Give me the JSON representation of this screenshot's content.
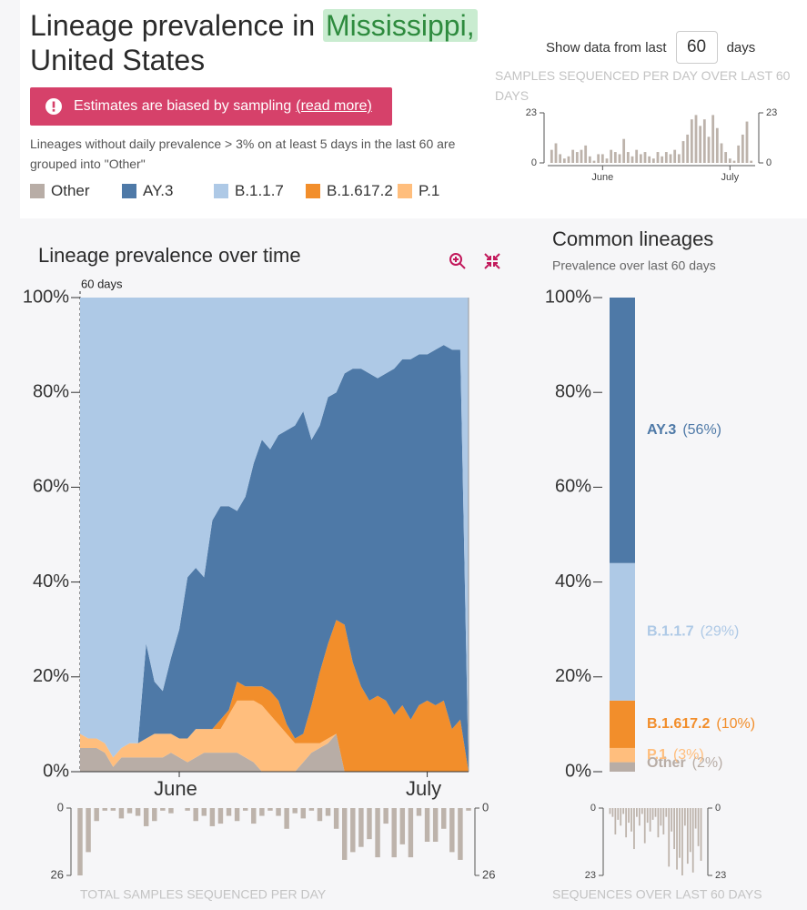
{
  "header": {
    "title": "Lineage prevalence in",
    "location": "Mississippi,",
    "subtitle": "United States"
  },
  "warning": {
    "text": "Estimates are biased by sampling",
    "link": "(read more)"
  },
  "note": "Lineages without daily prevalence > 3% on at least 5 days in the last 60 are grouped into \"Other\"",
  "controls": {
    "label": "Show data from last",
    "value": "60",
    "unit": "days"
  },
  "chart_data": [
    {
      "type": "bar",
      "title": "SAMPLES SEQUENCED PER DAY OVER LAST 60 DAYS",
      "categories": [
        null,
        null,
        null,
        null,
        null,
        null,
        null,
        null,
        null,
        null,
        null,
        null,
        "June",
        null,
        null,
        null,
        null,
        null,
        null,
        null,
        null,
        null,
        null,
        null,
        null,
        null,
        null,
        null,
        null,
        null,
        null,
        null,
        null,
        null,
        null,
        null,
        null,
        null,
        null,
        null,
        null,
        null,
        "July",
        null,
        null,
        null,
        null,
        null
      ],
      "values": [
        6,
        9,
        4,
        2,
        3,
        6,
        5,
        6,
        8,
        3,
        1,
        4,
        4,
        2,
        6,
        5,
        4,
        11,
        5,
        3,
        6,
        4,
        5,
        3,
        2,
        5,
        3,
        5,
        4,
        6,
        4,
        10,
        13,
        20,
        22,
        17,
        20,
        12,
        22,
        16,
        9,
        5,
        2,
        1,
        8,
        13,
        19,
        1
      ],
      "color": "#bdb3ab",
      "ylim": [
        0,
        23
      ],
      "yticks": [
        0,
        23
      ]
    },
    {
      "type": "area",
      "title": "Lineage prevalence over time",
      "annotation": "60 days",
      "categories": [
        null,
        null,
        null,
        null,
        null,
        null,
        null,
        null,
        null,
        null,
        null,
        null,
        "June",
        null,
        null,
        null,
        null,
        null,
        null,
        null,
        null,
        null,
        null,
        null,
        null,
        null,
        null,
        null,
        null,
        null,
        null,
        null,
        null,
        null,
        null,
        null,
        null,
        null,
        null,
        null,
        null,
        null,
        "July",
        null,
        null,
        null,
        null,
        null
      ],
      "series": [
        {
          "name": "Other",
          "color": "#b8ada6",
          "values": [
            5,
            5,
            5,
            4,
            1,
            3,
            3,
            3,
            3,
            3,
            3,
            4,
            3,
            2,
            3,
            4,
            4,
            4,
            4,
            4,
            3,
            2,
            0,
            0,
            0,
            0,
            0,
            2,
            4,
            5,
            6,
            8,
            0,
            0,
            0,
            0,
            0,
            0,
            0,
            0,
            0,
            0,
            0,
            0,
            0,
            0,
            0,
            0
          ]
        },
        {
          "name": "AY.3",
          "color": "#4e79a7",
          "values": [
            0,
            0,
            0,
            0,
            0,
            0,
            0,
            0,
            20,
            11,
            9,
            16,
            23,
            34,
            34,
            32,
            44,
            45,
            43,
            36,
            40,
            47,
            52,
            51,
            56,
            62,
            66,
            68,
            56,
            52,
            52,
            48,
            53,
            62,
            67,
            69,
            67,
            69,
            73,
            73,
            76,
            74,
            73,
            75,
            75,
            80,
            78,
            0
          ]
        },
        {
          "name": "B.1.1.7",
          "color": "#aec9e6",
          "values": [
            92,
            93,
            93,
            94,
            97,
            95,
            94,
            94,
            73,
            81,
            83,
            76,
            70,
            59,
            57,
            59,
            47,
            44,
            44,
            45,
            42,
            35,
            30,
            32,
            29,
            28,
            27,
            24,
            30,
            27,
            21,
            20,
            16,
            15,
            15,
            16,
            17,
            16,
            15,
            13,
            13,
            12,
            12,
            11,
            10,
            11,
            11,
            100
          ]
        },
        {
          "name": "B.1.617.2",
          "color": "#f28e2b",
          "values": [
            0,
            0,
            0,
            0,
            0,
            0,
            0,
            0,
            0,
            0,
            0,
            0,
            0,
            0,
            0,
            0,
            0,
            2,
            1,
            4,
            3,
            3,
            4,
            5,
            5,
            2,
            1,
            2,
            8,
            15,
            20,
            24,
            31,
            23,
            18,
            15,
            16,
            15,
            12,
            14,
            11,
            14,
            15,
            14,
            15,
            9,
            11,
            0
          ]
        },
        {
          "name": "P.1",
          "color": "#ffbe7d",
          "values": [
            3,
            2,
            2,
            2,
            2,
            2,
            3,
            3,
            4,
            5,
            5,
            4,
            4,
            5,
            6,
            5,
            5,
            5,
            8,
            11,
            12,
            13,
            14,
            12,
            10,
            8,
            6,
            4,
            2,
            1,
            1,
            0,
            0,
            0,
            0,
            0,
            0,
            0,
            0,
            0,
            0,
            0,
            0,
            0,
            0,
            0,
            0,
            0
          ]
        }
      ],
      "ylim": [
        0,
        100
      ],
      "yticks": [
        {
          "value": 0,
          "label": "0%"
        },
        {
          "value": 20,
          "label": "20%"
        },
        {
          "value": 40,
          "label": "40%"
        },
        {
          "value": 60,
          "label": "60%"
        },
        {
          "value": 80,
          "label": "80%"
        },
        {
          "value": 100,
          "label": "100%"
        }
      ]
    },
    {
      "type": "bar",
      "stacked": true,
      "title": "Common lineages",
      "subtitle": "Prevalence over last 60 days",
      "categories": [
        "AY.3",
        "B.1.1.7",
        "B.1.617.2",
        "P.1",
        "Other"
      ],
      "values": [
        56,
        29,
        10,
        3,
        2
      ],
      "value_labels": [
        "(56%)",
        "(29%)",
        "(10%)",
        "(3%)",
        "(2%)"
      ],
      "colors": [
        "#4e79a7",
        "#aec9e6",
        "#f28e2b",
        "#ffbe7d",
        "#b8ada6"
      ],
      "ylim": [
        0,
        100
      ],
      "yticks": [
        {
          "value": 0,
          "label": "0%"
        },
        {
          "value": 20,
          "label": "20%"
        },
        {
          "value": 40,
          "label": "40%"
        },
        {
          "value": 60,
          "label": "60%"
        },
        {
          "value": 80,
          "label": "80%"
        },
        {
          "value": 100,
          "label": "100%"
        }
      ]
    },
    {
      "type": "bar",
      "title": "TOTAL SAMPLES SEQUENCED PER DAY",
      "values": [
        26,
        17,
        5,
        1,
        1,
        4,
        2,
        3,
        7,
        5,
        1,
        2,
        0,
        1,
        5,
        3,
        7,
        6,
        3,
        5,
        1,
        6,
        3,
        1,
        3,
        8,
        2,
        4,
        1,
        5,
        3,
        8,
        20,
        17,
        15,
        12,
        19,
        6,
        19,
        14,
        19,
        3,
        13,
        13,
        8,
        17,
        20,
        1
      ],
      "color": "#bdb3ab",
      "inverted": true,
      "ylim": [
        0,
        26
      ],
      "yticks": [
        0,
        26
      ]
    },
    {
      "type": "bar",
      "title": "SEQUENCES OVER LAST 60 DAYS",
      "values": [
        2,
        3,
        9,
        4,
        6,
        2,
        10,
        5,
        8,
        14,
        3,
        6,
        2,
        12,
        5,
        8,
        4,
        3,
        10,
        6,
        9,
        3,
        20,
        8,
        14,
        21,
        17,
        23,
        6,
        19,
        15,
        22,
        7,
        13,
        18
      ],
      "color": "#bdb3ab",
      "inverted": true,
      "ylim": [
        0,
        23
      ],
      "yticks": [
        0,
        23
      ]
    }
  ]
}
